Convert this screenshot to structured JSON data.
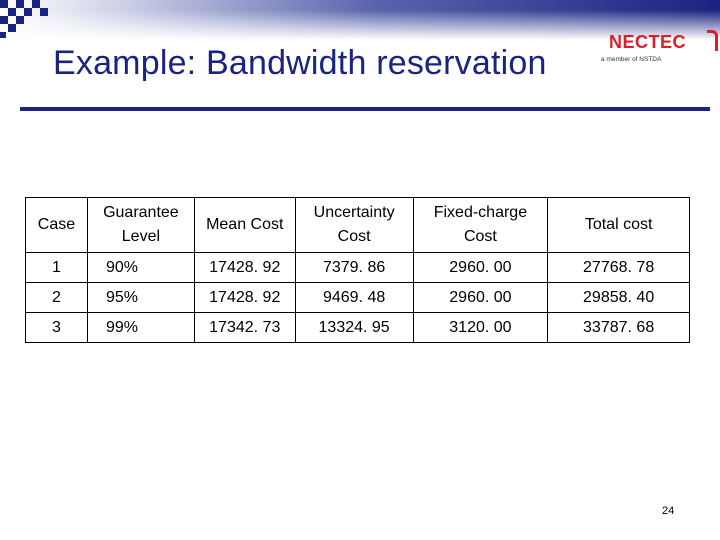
{
  "title": "Example: Bandwidth reservation",
  "logo": {
    "word": "NECTEC",
    "tagline": "a member of NSTDA",
    "color": "#d8202a"
  },
  "theme": {
    "accent": "#1a2380"
  },
  "table": {
    "headers": [
      "Case",
      "Guarantee Level",
      "Mean Cost",
      "Uncertainty Cost",
      "Fixed-charge Cost",
      "Total cost"
    ],
    "rows": [
      [
        "1",
        "90%",
        "17428. 92",
        "7379. 86",
        "2960. 00",
        "27768. 78"
      ],
      [
        "2",
        "95%",
        "17428. 92",
        "9469. 48",
        "2960. 00",
        "29858. 40"
      ],
      [
        "3",
        "99%",
        "17342. 73",
        "13324. 95",
        "3120. 00",
        "33787. 68"
      ]
    ]
  },
  "page_number": "24"
}
